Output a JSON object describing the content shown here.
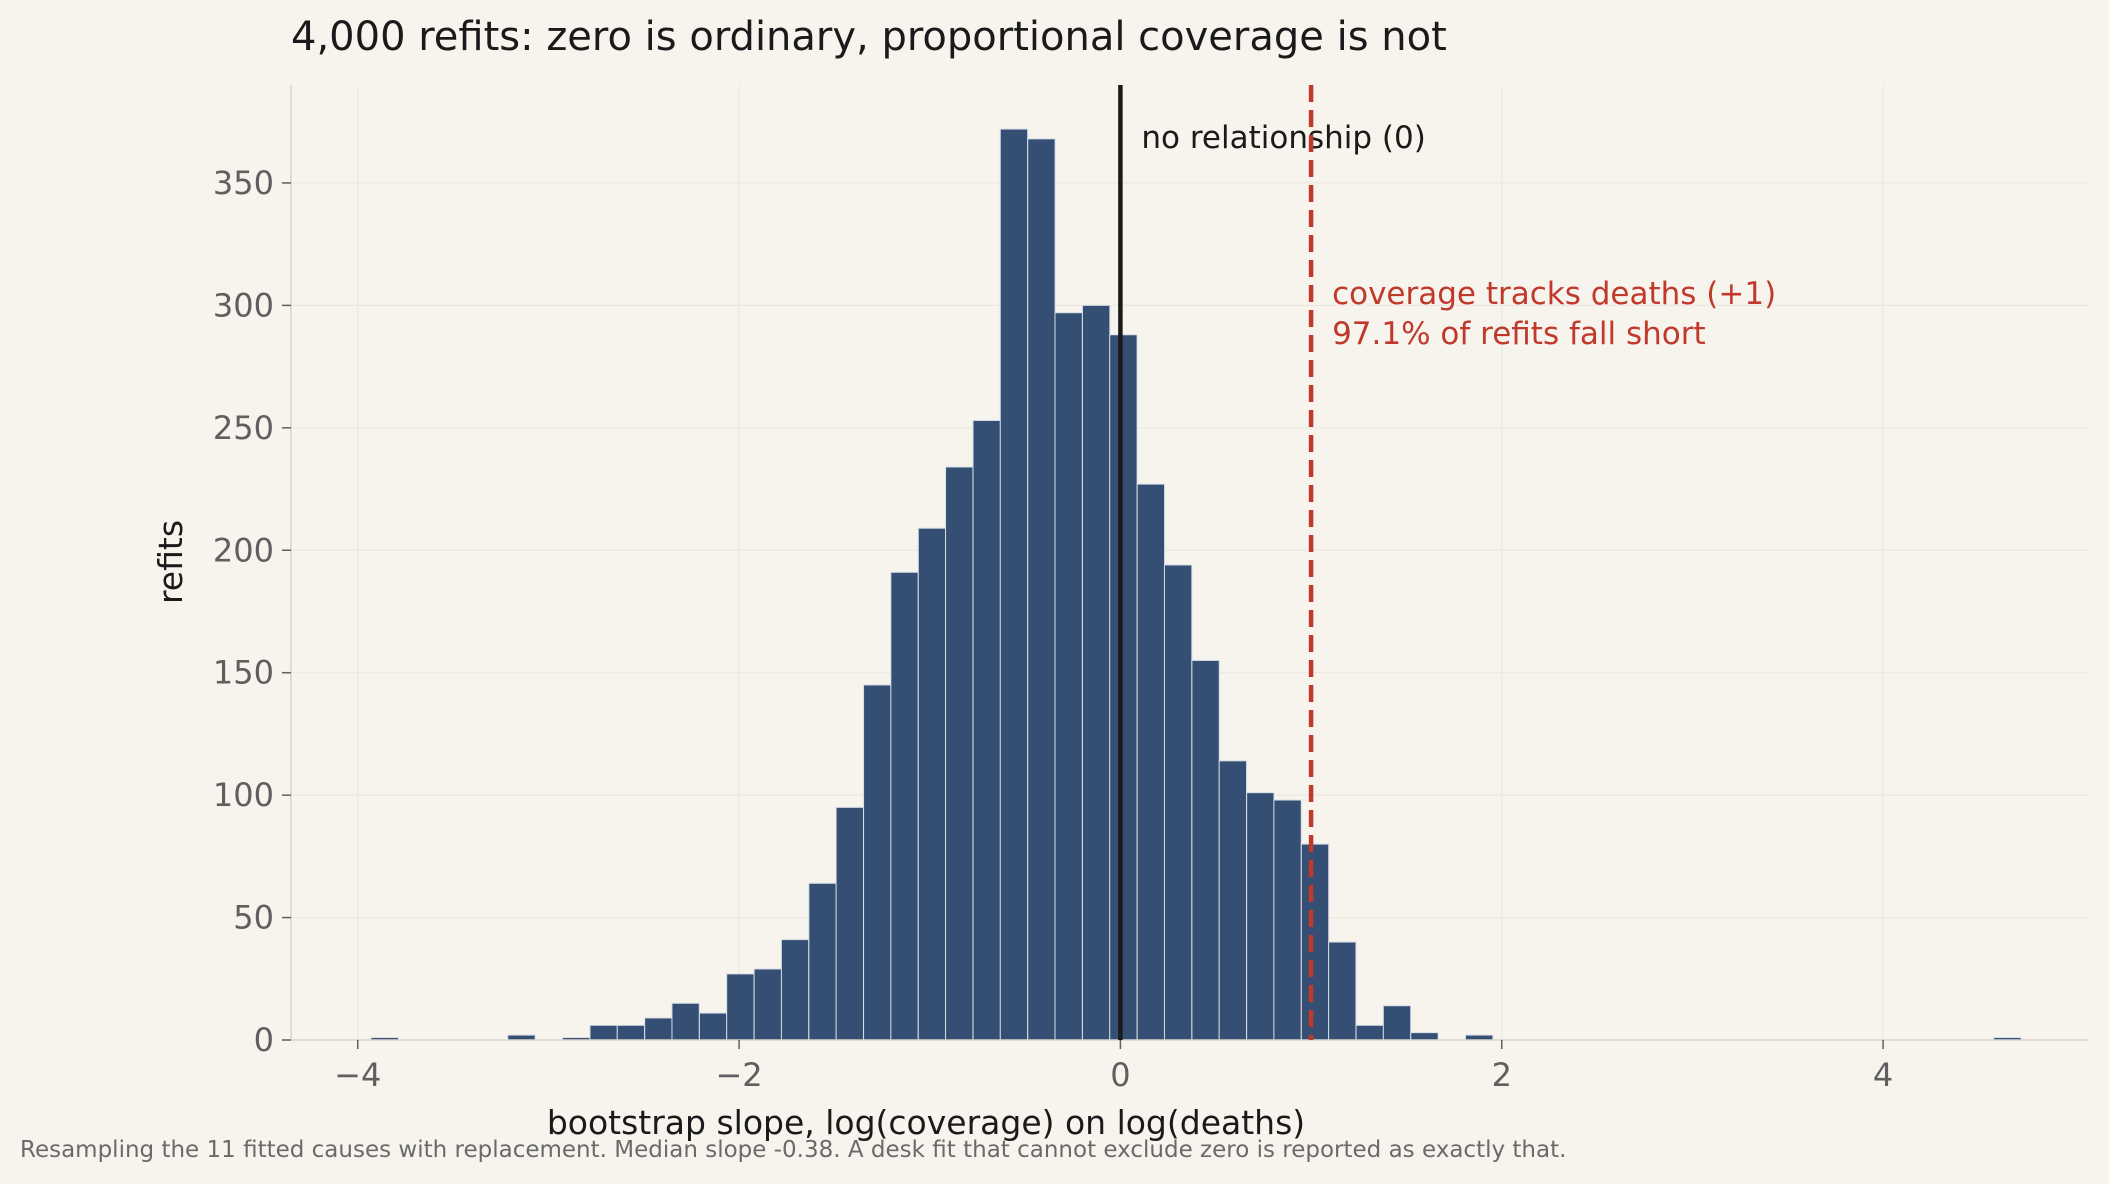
{
  "chart_data": {
    "type": "histogram",
    "title": "4,000 refits: zero is ordinary, proportional coverage is not",
    "xlabel": "bootstrap slope, log(coverage) on log(deaths)",
    "ylabel": "refits",
    "footnote": "Resampling the 11 fitted causes with replacement. Median slope -0.38. A desk fit that cannot exclude zero is reported as exactly that.",
    "xlim": [
      -4.35,
      5.08
    ],
    "ylim": [
      0,
      390
    ],
    "xticks": [
      -4,
      -2,
      0,
      2,
      4
    ],
    "xtick_labels": [
      "−4",
      "−2",
      "0",
      "2",
      "4"
    ],
    "yticks": [
      0,
      50,
      100,
      150,
      200,
      250,
      300,
      350
    ],
    "ytick_labels": [
      "0",
      "50",
      "100",
      "150",
      "200",
      "250",
      "300",
      "350"
    ],
    "grid": true,
    "bin_width": 0.1435,
    "bins": [
      {
        "x0": -3.93,
        "count": 1
      },
      {
        "x0": -3.787,
        "count": 0
      },
      {
        "x0": -3.643,
        "count": 0
      },
      {
        "x0": -3.5,
        "count": 0
      },
      {
        "x0": -3.356,
        "count": 0
      },
      {
        "x0": -3.213,
        "count": 2
      },
      {
        "x0": -3.069,
        "count": 0
      },
      {
        "x0": -2.926,
        "count": 1
      },
      {
        "x0": -2.782,
        "count": 6
      },
      {
        "x0": -2.639,
        "count": 6
      },
      {
        "x0": -2.495,
        "count": 9
      },
      {
        "x0": -2.352,
        "count": 15
      },
      {
        "x0": -2.208,
        "count": 11
      },
      {
        "x0": -2.065,
        "count": 27
      },
      {
        "x0": -1.921,
        "count": 29
      },
      {
        "x0": -1.778,
        "count": 41
      },
      {
        "x0": -1.634,
        "count": 64
      },
      {
        "x0": -1.491,
        "count": 95
      },
      {
        "x0": -1.347,
        "count": 145
      },
      {
        "x0": -1.204,
        "count": 191
      },
      {
        "x0": -1.06,
        "count": 209
      },
      {
        "x0": -0.917,
        "count": 234
      },
      {
        "x0": -0.773,
        "count": 253
      },
      {
        "x0": -0.63,
        "count": 372
      },
      {
        "x0": -0.486,
        "count": 368
      },
      {
        "x0": -0.343,
        "count": 297
      },
      {
        "x0": -0.199,
        "count": 300
      },
      {
        "x0": -0.056,
        "count": 288
      },
      {
        "x0": 0.088,
        "count": 227
      },
      {
        "x0": 0.231,
        "count": 194
      },
      {
        "x0": 0.375,
        "count": 155
      },
      {
        "x0": 0.518,
        "count": 114
      },
      {
        "x0": 0.662,
        "count": 101
      },
      {
        "x0": 0.805,
        "count": 98
      },
      {
        "x0": 0.949,
        "count": 80
      },
      {
        "x0": 1.092,
        "count": 40
      },
      {
        "x0": 1.236,
        "count": 6
      },
      {
        "x0": 1.379,
        "count": 14
      },
      {
        "x0": 1.523,
        "count": 3
      },
      {
        "x0": 1.666,
        "count": 0
      },
      {
        "x0": 1.81,
        "count": 2
      },
      {
        "x0": 4.58,
        "count": 1
      }
    ],
    "reference_lines": [
      {
        "x": 0,
        "style": "solid",
        "color": "#1a1a1a",
        "label_lines": [
          "no relationship (0)"
        ]
      },
      {
        "x": 1,
        "style": "dashed",
        "color": "#c0392b",
        "label_lines": [
          "coverage tracks deaths (+1)",
          "97.1% of refits fall short"
        ]
      }
    ],
    "colors": {
      "bar": "#344f73",
      "bar_edge": "#d7dde6",
      "axis_text": "#5f5f5f",
      "title_text": "#1a1a1a",
      "background": "#f7f4ee",
      "grid": "#ece8e0"
    }
  }
}
